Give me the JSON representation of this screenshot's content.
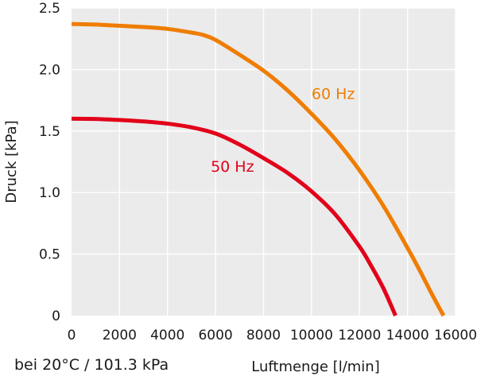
{
  "chart_data": {
    "type": "line",
    "title": "",
    "xlabel": "Luftmenge [l/min]",
    "ylabel": "Druck [kPa]",
    "xlim": [
      0,
      16000
    ],
    "ylim": [
      0,
      2.5
    ],
    "x_ticks": [
      "0",
      "2000",
      "4000",
      "6000",
      "8000",
      "10000",
      "12000",
      "14000",
      "16000"
    ],
    "y_ticks": [
      "0",
      "0.5",
      "1.0",
      "1.5",
      "2.0",
      "2.5"
    ],
    "grid": true,
    "series": [
      {
        "name": "60 Hz",
        "color": "#ef7d00",
        "x": [
          0,
          1000,
          2000,
          3000,
          4000,
          5000,
          5500,
          6000,
          7000,
          8000,
          9000,
          10000,
          11000,
          12000,
          13000,
          14000,
          14500,
          15000,
          15500
        ],
        "y": [
          2.37,
          2.365,
          2.355,
          2.345,
          2.33,
          2.3,
          2.28,
          2.24,
          2.12,
          1.99,
          1.83,
          1.64,
          1.43,
          1.18,
          0.89,
          0.55,
          0.37,
          0.18,
          0.0
        ]
      },
      {
        "name": "50 Hz",
        "color": "#e2001a",
        "x": [
          0,
          1000,
          2000,
          3000,
          4000,
          5000,
          6000,
          7000,
          8000,
          9000,
          10000,
          11000,
          12000,
          12500,
          13000,
          13500
        ],
        "y": [
          1.6,
          1.598,
          1.59,
          1.578,
          1.56,
          1.53,
          1.48,
          1.39,
          1.28,
          1.16,
          1.01,
          0.82,
          0.56,
          0.4,
          0.22,
          0.0
        ]
      }
    ]
  },
  "footnote": "bei 20°C / 101.3 kPa"
}
